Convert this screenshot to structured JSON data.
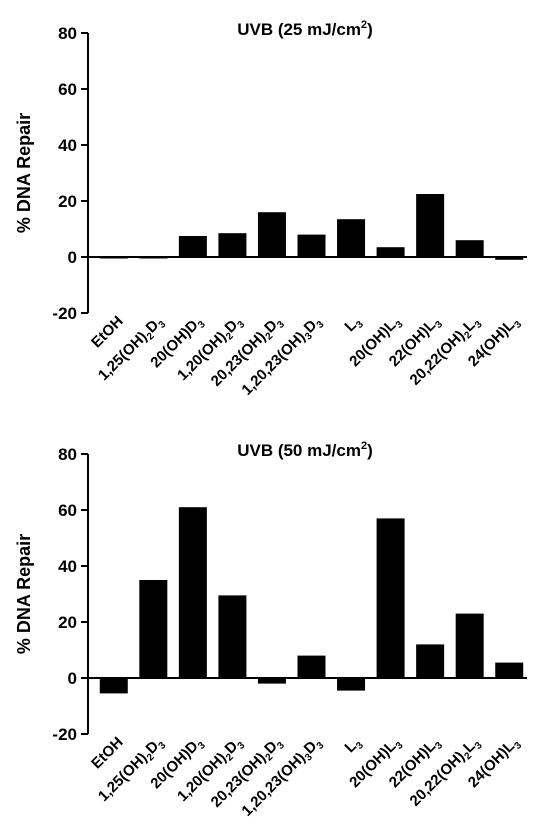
{
  "chart_data": [
    {
      "type": "bar",
      "title": "UVB (25 mJ/cm2)",
      "ylabel": "% DNA Repair",
      "ylim": [
        -20,
        80
      ],
      "yticks": [
        -20,
        0,
        20,
        40,
        60,
        80
      ],
      "categories": [
        "EtOH",
        "1,25(OH)2D3",
        "20(OH)D3",
        "1,20(OH)2D3",
        "20,23(OH)2D3",
        "1,20,23(OH)3D3",
        "L3",
        "20(OH)L3",
        "22(OH)L3",
        "20,22(OH)2L3",
        "24(OH)L3"
      ],
      "values": [
        -0.5,
        -0.3,
        7.5,
        8.5,
        16,
        8,
        13.5,
        3.5,
        22.5,
        6,
        -1
      ]
    },
    {
      "type": "bar",
      "title": "UVB (50 mJ/cm2)",
      "ylabel": "% DNA Repair",
      "ylim": [
        -20,
        80
      ],
      "yticks": [
        -20,
        0,
        20,
        40,
        60,
        80
      ],
      "categories": [
        "EtOH",
        "1,25(OH)2D3",
        "20(OH)D3",
        "1,20(OH)2D3",
        "20,23(OH)2D3",
        "1,20,23(OH)3D3",
        "L3",
        "20(OH)L3",
        "22(OH)L3",
        "20,22(OH)2L3",
        "24(OH)L3"
      ],
      "values": [
        -5.5,
        35,
        61,
        29.5,
        -2,
        8,
        -4.5,
        57,
        12,
        23,
        5.5
      ]
    }
  ]
}
